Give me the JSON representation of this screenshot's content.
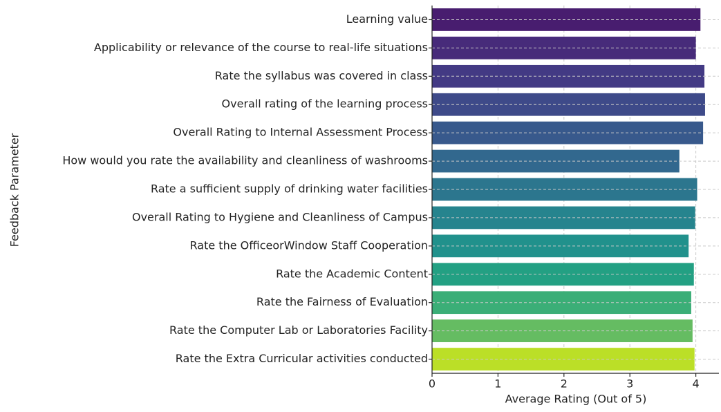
{
  "chart_data": {
    "type": "barh",
    "xlabel": "Average Rating (Out of 5)",
    "ylabel": "Feedback Parameter",
    "categories": [
      "Learning value",
      "Applicability or relevance of the course to real-life situations",
      "Rate the syllabus was covered in class",
      "Overall rating of the learning process",
      "Overall Rating to Internal Assessment Process",
      "How would you rate the availability and cleanliness of washrooms",
      "Rate a sufficient supply of drinking water facilities",
      "Overall Rating to Hygiene and Cleanliness of Campus",
      "Rate the OfficeorWindow Staff Cooperation",
      "Rate the Academic Content",
      "Rate the Fairness of Evaluation",
      "Rate the Computer Lab or Laboratories Facility",
      "Rate the Extra Curricular activities conducted"
    ],
    "values": [
      4.07,
      4.0,
      4.13,
      4.14,
      4.11,
      3.75,
      4.02,
      3.99,
      3.89,
      3.97,
      3.93,
      3.95,
      3.98
    ],
    "colors": [
      "#481d6f",
      "#472b7a",
      "#433a84",
      "#3e4a89",
      "#38598c",
      "#32688e",
      "#2c768e",
      "#26848e",
      "#21918c",
      "#23a083",
      "#3bae77",
      "#65bc62",
      "#bbdf27"
    ],
    "xlim": [
      0,
      4.35
    ],
    "xticks": [
      0,
      1,
      2,
      3,
      4
    ],
    "grid": true
  }
}
